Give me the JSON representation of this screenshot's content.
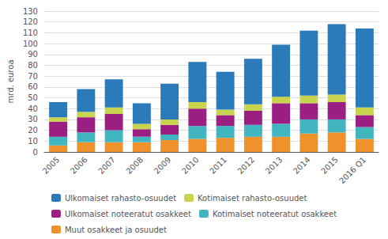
{
  "chart_data": {
    "type": "bar",
    "stacked": true,
    "categories": [
      "2005",
      "2006",
      "2007",
      "2008",
      "2009",
      "2010",
      "2011",
      "2012",
      "2013",
      "2014",
      "2015",
      "2016 Q1"
    ],
    "series": [
      {
        "name": "Muut osakkeet ja osuudet",
        "color": "#f0922b",
        "values": [
          6,
          9,
          9,
          9,
          11,
          12,
          13,
          14,
          14,
          17,
          18,
          12
        ]
      },
      {
        "name": "Kotimaiset noteeratut osakkeet",
        "color": "#41b6c0",
        "values": [
          8,
          9,
          11,
          5,
          5,
          12,
          11,
          11,
          12,
          13,
          12,
          11
        ]
      },
      {
        "name": "Ulkomaiset noteeratut osakkeet",
        "color": "#9b1f82",
        "values": [
          14,
          14,
          15,
          7,
          9,
          16,
          10,
          13,
          19,
          15,
          16,
          11
        ]
      },
      {
        "name": "Kotimaiset rahasto-osuudet",
        "color": "#c8d44e",
        "values": [
          4,
          5,
          6,
          5,
          5,
          6,
          5,
          6,
          6,
          7,
          7,
          7
        ]
      },
      {
        "name": "Ulkomaiset rahasto-osuudet",
        "color": "#2b7bba",
        "values": [
          14,
          21,
          26,
          19,
          33,
          37,
          35,
          42,
          48,
          60,
          65,
          73
        ]
      }
    ],
    "ylabel": "mrd. euroa",
    "ylim": [
      0,
      130
    ],
    "yticks": [
      0,
      10,
      20,
      30,
      40,
      50,
      60,
      70,
      80,
      90,
      100,
      110,
      120,
      130
    ],
    "grid": true,
    "legend": "bottom"
  }
}
